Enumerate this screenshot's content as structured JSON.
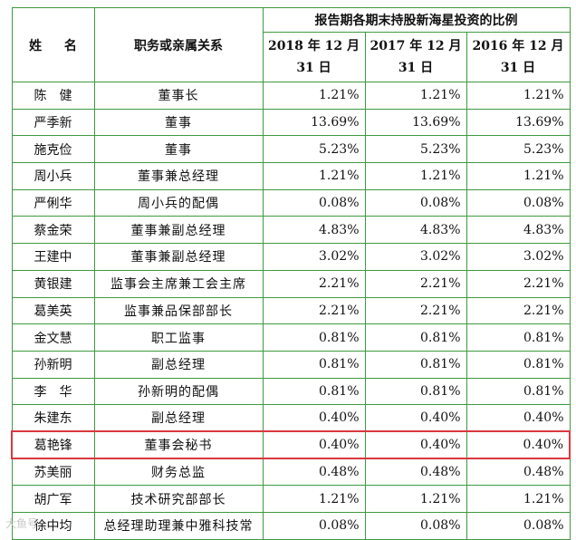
{
  "header": {
    "name_col": "姓  名",
    "role_col": "职务或亲属关系",
    "group_title": "报告期各期末持股新海星投资的比例",
    "years": [
      "2018 年 12 月 31 日",
      "2017 年 12 月 31 日",
      "2016 年 12 月 31 日"
    ]
  },
  "rows": [
    {
      "name": "陈　健",
      "role": "董事长",
      "v2018": "1.21%",
      "v2017": "1.21%",
      "v2016": "1.21%"
    },
    {
      "name": "严季新",
      "role": "董事",
      "v2018": "13.69%",
      "v2017": "13.69%",
      "v2016": "13.69%"
    },
    {
      "name": "施克俭",
      "role": "董事",
      "v2018": "5.23%",
      "v2017": "5.23%",
      "v2016": "5.23%"
    },
    {
      "name": "周小兵",
      "role": "董事兼总经理",
      "v2018": "1.21%",
      "v2017": "1.21%",
      "v2016": "1.21%"
    },
    {
      "name": "严俐华",
      "role": "周小兵的配偶",
      "v2018": "0.08%",
      "v2017": "0.08%",
      "v2016": "0.08%"
    },
    {
      "name": "蔡金荣",
      "role": "董事兼副总经理",
      "v2018": "4.83%",
      "v2017": "4.83%",
      "v2016": "4.83%"
    },
    {
      "name": "王建中",
      "role": "董事兼副总经理",
      "v2018": "3.02%",
      "v2017": "3.02%",
      "v2016": "3.02%"
    },
    {
      "name": "黄银建",
      "role": "监事会主席兼工会主席",
      "v2018": "2.21%",
      "v2017": "2.21%",
      "v2016": "2.21%"
    },
    {
      "name": "葛美英",
      "role": "监事兼品保部部长",
      "v2018": "2.21%",
      "v2017": "2.21%",
      "v2016": "2.21%"
    },
    {
      "name": "金文慧",
      "role": "职工监事",
      "v2018": "0.81%",
      "v2017": "0.81%",
      "v2016": "0.81%"
    },
    {
      "name": "孙新明",
      "role": "副总经理",
      "v2018": "0.81%",
      "v2017": "0.81%",
      "v2016": "0.81%"
    },
    {
      "name": "李　华",
      "role": "孙新明的配偶",
      "v2018": "0.81%",
      "v2017": "0.81%",
      "v2016": "0.81%"
    },
    {
      "name": "朱建东",
      "role": "副总经理",
      "v2018": "0.40%",
      "v2017": "0.40%",
      "v2016": "0.40%"
    },
    {
      "name": "葛艳锋",
      "role": "董事会秘书",
      "v2018": "0.40%",
      "v2017": "0.40%",
      "v2016": "0.40%",
      "highlight": true
    },
    {
      "name": "苏美丽",
      "role": "财务总监",
      "v2018": "0.48%",
      "v2017": "0.48%",
      "v2016": "0.48%"
    },
    {
      "name": "胡广军",
      "role": "技术研究部部长",
      "v2018": "1.21%",
      "v2017": "1.21%",
      "v2016": "1.21%"
    },
    {
      "name": "徐中均",
      "role": "总经理助理兼中雅科技常",
      "v2018": "0.08%",
      "v2017": "0.08%",
      "v2016": "0.08%"
    }
  ],
  "colors": {
    "border": "#3f9a3f",
    "highlight": "#d9383f"
  },
  "watermark": "大鱼号"
}
